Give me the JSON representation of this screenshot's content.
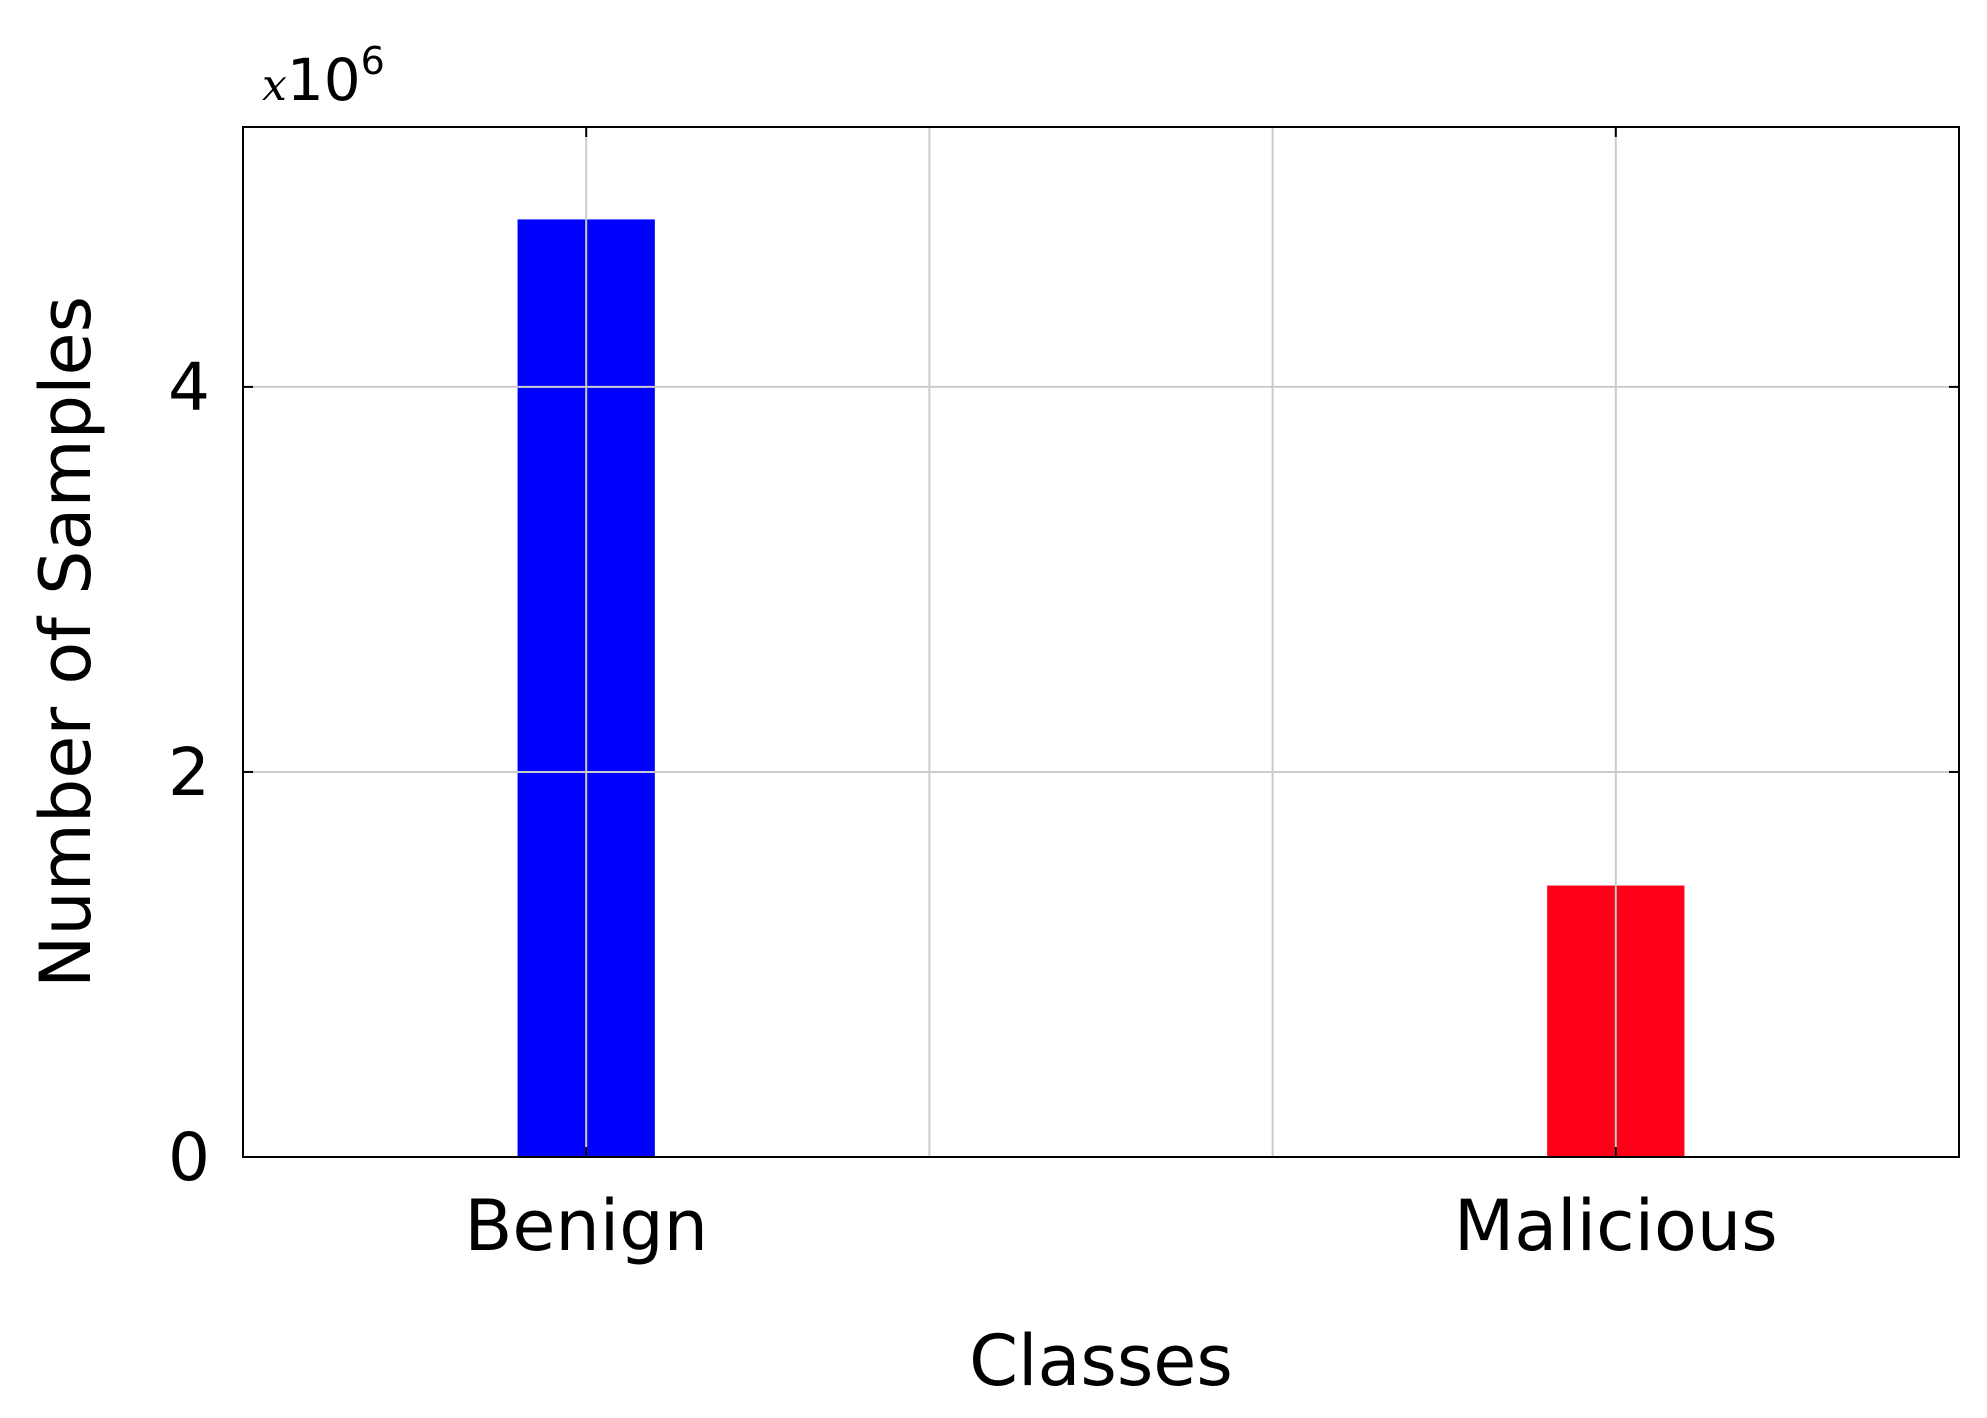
{
  "chart_data": {
    "type": "bar",
    "categories": [
      "Benign",
      "Malicious"
    ],
    "values": [
      4.87,
      1.41
    ],
    "value_unit_multiplier": {
      "prefix": "x",
      "base": "10",
      "exponent": "6"
    },
    "title": "",
    "xlabel": "Classes",
    "ylabel": "Number of Samples",
    "ylim": [
      0,
      5.35
    ],
    "yticks": [
      0,
      2,
      4
    ],
    "grid": true,
    "colors": {
      "Benign": "#0000ff",
      "Malicious": "#ff0019",
      "grid": "#cccccc",
      "axis": "#000000"
    },
    "legend": "none"
  }
}
